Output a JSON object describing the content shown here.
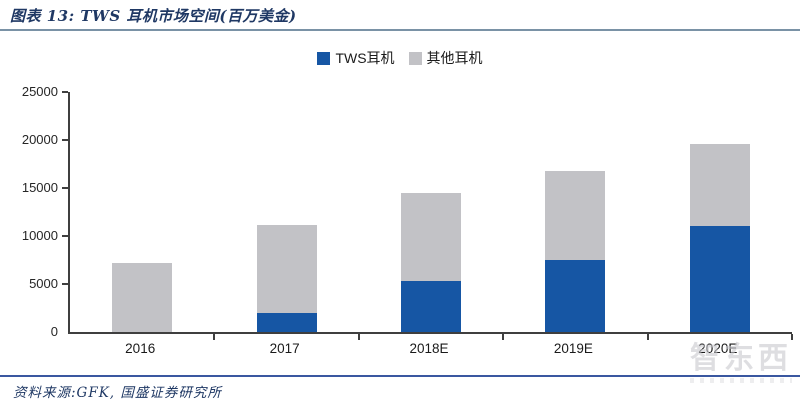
{
  "header": {
    "title": "图表 13:  TWS 耳机市场空间(百万美金)"
  },
  "chart_data": {
    "type": "bar",
    "stacked": true,
    "title": "TWS 耳机市场空间(百万美金)",
    "categories": [
      "2016",
      "2017",
      "2018E",
      "2019E",
      "2020E"
    ],
    "series": [
      {
        "name": "TWS耳机",
        "color": "#1656A4",
        "values": [
          0,
          2000,
          5300,
          7500,
          11000
        ]
      },
      {
        "name": "其他耳机",
        "color": "#C2C2C6",
        "values": [
          7200,
          9100,
          9200,
          9300,
          8600
        ]
      }
    ],
    "xlabel": "",
    "ylabel": "",
    "ylim": [
      0,
      25000
    ],
    "yticks": [
      0,
      5000,
      10000,
      15000,
      20000,
      25000
    ],
    "legend_position": "top-center",
    "grid": false
  },
  "footer": {
    "source": "资料来源:GFK, 国盛证券研究所"
  },
  "watermark": {
    "text": "智东西"
  },
  "colors": {
    "accent_navy": "#1F3864",
    "bar_tws": "#1656A4",
    "bar_other": "#C2C2C6",
    "axis": "#3F3F3F",
    "top_rule": "#7A92A6",
    "bottom_rule": "#3A57A0"
  }
}
